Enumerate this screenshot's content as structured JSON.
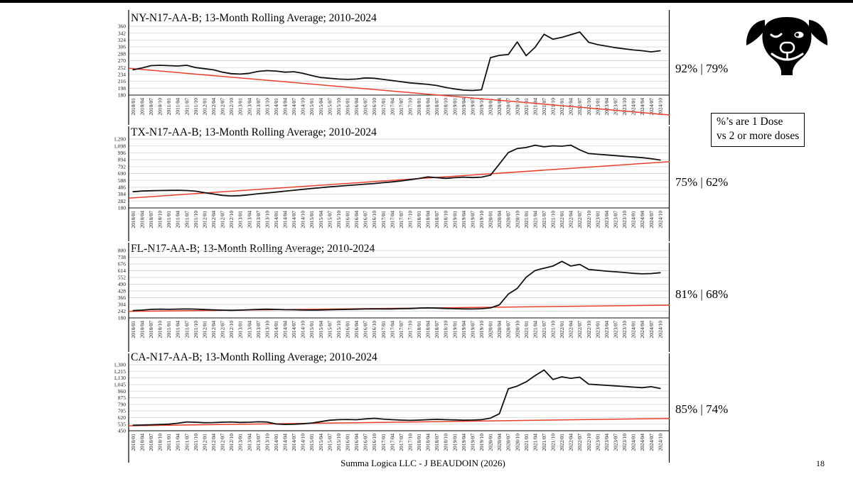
{
  "slide": {
    "footer": "Summa Logica LLC - J BEAUDOIN (2026)",
    "page_number": "18",
    "note_box": {
      "line1": "%’s are 1 Dose",
      "line2": "vs 2 or more doses"
    },
    "logo_icon": "winking-dog-icon"
  },
  "colors": {
    "data_line": "#111111",
    "trend_line": "#e8402b",
    "gridline": "#d9d9d9",
    "axis": "#404040",
    "frame": "#000000"
  },
  "shared_quarters": [
    "2010/01",
    "2010/04",
    "2010/07",
    "2010/10",
    "2011/01",
    "2011/04",
    "2011/07",
    "2011/10",
    "2012/01",
    "2012/04",
    "2012/07",
    "2012/10",
    "2013/01",
    "2013/04",
    "2013/07",
    "2013/10",
    "2014/01",
    "2014/04",
    "2014/07",
    "2014/10",
    "2015/01",
    "2015/04",
    "2015/07",
    "2015/10",
    "2016/01",
    "2016/04",
    "2016/07",
    "2016/10",
    "2017/01",
    "2017/04",
    "2017/07",
    "2017/10",
    "2018/01",
    "2018/04",
    "2018/07",
    "2018/10",
    "2019/01",
    "2019/04",
    "2019/07",
    "2019/10",
    "2020/01",
    "2020/04",
    "2020/07",
    "2020/10",
    "2021/01",
    "2021/04",
    "2021/07",
    "2021/10",
    "2022/01",
    "2022/04",
    "2022/07",
    "2022/10",
    "2023/01",
    "2023/04",
    "2023/07",
    "2023/10",
    "2024/01",
    "2024/04",
    "2024/07",
    "2024/10"
  ],
  "chart_data": [
    {
      "type": "line",
      "title": "NY-N17-AA-B; 13-Month Rolling Average; 2010-2024",
      "percent_label": "92% | 79%",
      "categories_ref": "shared_quarters",
      "y_min": 180,
      "y_max": 360,
      "y_ticks": [
        "360",
        "342",
        "324",
        "306",
        "288",
        "270",
        "252",
        "234",
        "216",
        "198",
        "180"
      ],
      "grid": true,
      "legend": "none",
      "series": [
        {
          "name": "13-Month Rolling Average",
          "values": [
            246,
            251,
            257,
            258,
            257,
            256,
            258,
            252,
            249,
            246,
            240,
            236,
            235,
            237,
            242,
            244,
            243,
            240,
            241,
            237,
            231,
            226,
            224,
            222,
            221,
            222,
            225,
            224,
            221,
            218,
            215,
            212,
            210,
            208,
            205,
            200,
            196,
            193,
            192,
            194,
            278,
            284,
            286,
            319,
            283,
            305,
            339,
            326,
            331,
            338,
            345,
            318,
            312,
            308,
            304,
            301,
            298,
            296,
            293,
            296
          ]
        }
      ],
      "trend": {
        "name": "linear trend",
        "start": 250,
        "end": 128
      }
    },
    {
      "type": "line",
      "title": "TX-N17-AA-B; 13-Month Rolling Average; 2010-2024",
      "percent_label": "75% | 62%",
      "categories_ref": "shared_quarters",
      "y_min": 180,
      "y_max": 1200,
      "y_ticks": [
        "1,200",
        "1,098",
        "996",
        "894",
        "792",
        "690",
        "588",
        "486",
        "384",
        "282",
        "180"
      ],
      "grid": true,
      "legend": "none",
      "series": [
        {
          "name": "13-Month Rolling Average",
          "values": [
            420,
            430,
            435,
            438,
            440,
            442,
            438,
            428,
            406,
            386,
            366,
            358,
            362,
            375,
            390,
            402,
            415,
            428,
            442,
            455,
            468,
            480,
            492,
            502,
            512,
            522,
            532,
            542,
            554,
            566,
            580,
            598,
            616,
            640,
            628,
            618,
            628,
            636,
            630,
            636,
            665,
            830,
            1000,
            1060,
            1075,
            1110,
            1085,
            1100,
            1095,
            1110,
            1040,
            985,
            975,
            965,
            955,
            945,
            935,
            925,
            910,
            890
          ]
        }
      ],
      "trend": {
        "name": "linear trend",
        "start": 325,
        "end": 865
      }
    },
    {
      "type": "line",
      "title": "FL-N17-AA-B; 13-Month Rolling Average; 2010-2024",
      "percent_label": "81% | 68%",
      "categories_ref": "shared_quarters",
      "y_min": 180,
      "y_max": 800,
      "y_ticks": [
        "800",
        "738",
        "676",
        "614",
        "552",
        "490",
        "428",
        "366",
        "304",
        "242",
        "180"
      ],
      "grid": true,
      "legend": "none",
      "series": [
        {
          "name": "13-Month Rolling Average",
          "values": [
            248,
            252,
            258,
            261,
            259,
            261,
            262,
            261,
            257,
            254,
            252,
            250,
            252,
            255,
            258,
            260,
            258,
            256,
            255,
            253,
            252,
            253,
            255,
            257,
            258,
            260,
            262,
            263,
            262,
            263,
            265,
            266,
            270,
            273,
            270,
            267,
            265,
            263,
            262,
            265,
            272,
            300,
            399,
            451,
            554,
            616,
            637,
            657,
            700,
            657,
            672,
            626,
            618,
            610,
            604,
            598,
            590,
            585,
            588,
            596
          ]
        }
      ],
      "trend": {
        "name": "linear trend",
        "start": 240,
        "end": 297
      }
    },
    {
      "type": "line",
      "title": "CA-N17-AA-B; 13-Month Rolling Average; 2010-2024",
      "percent_label": "85% | 74%",
      "categories_ref": "shared_quarters",
      "y_min": 450,
      "y_max": 1300,
      "y_ticks": [
        "1,300",
        "1,215",
        "1,130",
        "1,045",
        "960",
        "875",
        "790",
        "705",
        "620",
        "535",
        "450"
      ],
      "grid": true,
      "legend": "none",
      "series": [
        {
          "name": "13-Month Rolling Average",
          "values": [
            520,
            523,
            527,
            531,
            535,
            547,
            563,
            560,
            553,
            555,
            560,
            563,
            557,
            560,
            565,
            562,
            537,
            531,
            533,
            540,
            550,
            567,
            585,
            593,
            595,
            592,
            603,
            610,
            600,
            593,
            587,
            583,
            587,
            593,
            597,
            593,
            590,
            586,
            588,
            593,
            613,
            668,
            990,
            1025,
            1080,
            1160,
            1232,
            1110,
            1145,
            1125,
            1140,
            1050,
            1042,
            1035,
            1028,
            1020,
            1012,
            1005,
            1018,
            995
          ]
        }
      ],
      "trend": {
        "name": "linear trend",
        "start": 514,
        "end": 608
      }
    }
  ]
}
